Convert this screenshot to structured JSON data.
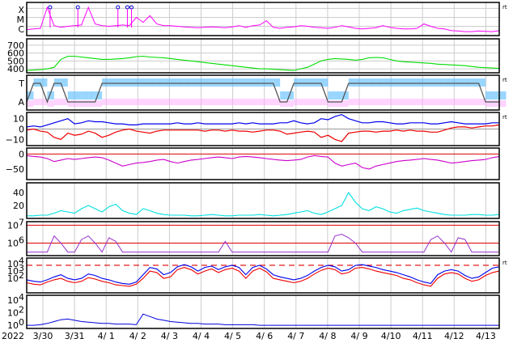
{
  "chart_data": {
    "type": "line",
    "year_label": "2022",
    "x_tick_labels": [
      "3/30",
      "3/31",
      "4/ 1",
      "4/ 2",
      "4/ 3",
      "4/ 4",
      "4/ 5",
      "4/ 6",
      "4/ 7",
      "4/ 8",
      "4/ 9",
      "4/10",
      "4/11",
      "4/12",
      "4/13"
    ],
    "right_marker": "rt",
    "panels": [
      {
        "id": "xray-class",
        "tick_labels": [
          "X",
          "M",
          "C"
        ],
        "series_color": "#ff00ff",
        "flare_markers_day": [
          0.1,
          0.98,
          2.25,
          2.55,
          2.68
        ],
        "values": [
          0.18,
          0.2,
          0.22,
          0.85,
          0.3,
          0.25,
          0.28,
          0.3,
          0.32,
          0.85,
          0.35,
          0.3,
          0.28,
          0.3,
          0.32,
          0.3,
          0.55,
          0.4,
          0.6,
          0.35,
          0.3,
          0.3,
          0.28,
          0.26,
          0.25,
          0.24,
          0.25,
          0.26,
          0.25,
          0.24,
          0.26,
          0.3,
          0.25,
          0.3,
          0.32,
          0.45,
          0.25,
          0.22,
          0.25,
          0.26,
          0.3,
          0.28,
          0.25,
          0.24,
          0.22,
          0.25,
          0.3,
          0.26,
          0.22,
          0.2,
          0.22,
          0.24,
          0.3,
          0.25,
          0.22,
          0.2,
          0.2,
          0.22,
          0.35,
          0.28,
          0.22,
          0.2,
          0.15,
          0.14,
          0.12,
          0.12,
          0.14,
          0.13,
          0.12,
          0.15
        ]
      },
      {
        "id": "solar-wind-speed",
        "tick_labels": [
          "700",
          "600",
          "500",
          "400"
        ],
        "ylim": [
          350,
          780
        ],
        "series_color": "#00dd00",
        "values": [
          380,
          385,
          390,
          400,
          420,
          520,
          560,
          560,
          550,
          540,
          530,
          520,
          520,
          525,
          530,
          540,
          555,
          560,
          550,
          545,
          540,
          530,
          520,
          510,
          500,
          490,
          480,
          470,
          460,
          450,
          440,
          430,
          420,
          410,
          400,
          400,
          395,
          390,
          385,
          380,
          400,
          420,
          460,
          500,
          520,
          530,
          525,
          520,
          510,
          520,
          540,
          545,
          540,
          520,
          500,
          490,
          485,
          480,
          475,
          470,
          460,
          455,
          450,
          445,
          440,
          430,
          420,
          415,
          410,
          405
        ]
      },
      {
        "id": "imf-sector",
        "tick_labels": [
          "T",
          "A"
        ],
        "series_color": "#55bbff",
        "secondary_color": "#ffaaff",
        "step_line_color": "#555555",
        "step_values": [
          0,
          1,
          1,
          0,
          1,
          1,
          0,
          0,
          0,
          0,
          0,
          1,
          1,
          1,
          1,
          1,
          1,
          1,
          1,
          1,
          1,
          1,
          1,
          1,
          1,
          1,
          1,
          1,
          1,
          1,
          1,
          1,
          1,
          1,
          1,
          1,
          1,
          0,
          0,
          1,
          1,
          1,
          1,
          1,
          0,
          0,
          0,
          1,
          1,
          1,
          1,
          1,
          1,
          1,
          1,
          1,
          1,
          1,
          1,
          1,
          1,
          1,
          1,
          1,
          1,
          1,
          1,
          0,
          0,
          0
        ]
      },
      {
        "id": "imf-components",
        "tick_labels": [
          "10",
          "0",
          "−10"
        ],
        "ylim": [
          -16,
          16
        ],
        "series": [
          {
            "color": "#0000ee",
            "values": [
              2,
              3,
              2,
              4,
              6,
              8,
              10,
              5,
              6,
              8,
              7,
              7,
              6,
              5,
              5,
              4,
              4,
              5,
              5,
              5,
              5,
              5,
              6,
              5,
              5,
              6,
              5,
              5,
              5,
              5,
              5,
              6,
              5,
              6,
              5,
              5,
              5,
              6,
              6,
              8,
              6,
              5,
              6,
              10,
              9,
              12,
              14,
              10,
              8,
              6,
              6,
              7,
              7,
              6,
              5,
              5,
              6,
              6,
              6,
              5,
              5,
              6,
              7,
              6,
              5,
              5,
              5,
              5,
              6,
              6
            ]
          },
          {
            "color": "#ee0000",
            "values": [
              -1,
              0,
              -2,
              -3,
              -8,
              -10,
              -4,
              -6,
              -5,
              -2,
              -4,
              -8,
              -6,
              -3,
              -1,
              0,
              -2,
              -3,
              -4,
              -2,
              -1,
              -1,
              -1,
              -1,
              -1,
              -1,
              -2,
              -1,
              -1,
              -2,
              -1,
              -2,
              -2,
              -3,
              -2,
              -1,
              -1,
              -2,
              -5,
              -4,
              -3,
              -2,
              -3,
              -8,
              -6,
              -10,
              -12,
              -4,
              -3,
              -2,
              -2,
              -3,
              -2,
              -2,
              -1,
              -2,
              -1,
              -2,
              -2,
              -3,
              -3,
              -1,
              1,
              2,
              2,
              1,
              2,
              3,
              3,
              4
            ]
          }
        ]
      },
      {
        "id": "dst",
        "tick_labels": [
          "0",
          "−50"
        ],
        "ylim": [
          -85,
          20
        ],
        "zero_line_color": "#dd0000",
        "series_color": "#cc00cc",
        "values": [
          -5,
          -8,
          -10,
          -15,
          -25,
          -20,
          -15,
          -18,
          -15,
          -12,
          -10,
          -12,
          -20,
          -30,
          -40,
          -35,
          -30,
          -28,
          -25,
          -20,
          -18,
          -25,
          -30,
          -25,
          -20,
          -18,
          -15,
          -12,
          -10,
          -12,
          -15,
          -10,
          -8,
          -10,
          -12,
          -15,
          -18,
          -20,
          -22,
          -20,
          -18,
          -10,
          -5,
          -8,
          -10,
          -30,
          -40,
          -35,
          -30,
          -45,
          -50,
          -40,
          -35,
          -30,
          -25,
          -22,
          -20,
          -18,
          -15,
          -18,
          -20,
          -25,
          -30,
          -28,
          -25,
          -22,
          -20,
          -18,
          -12,
          -8
        ]
      },
      {
        "id": "kp-density",
        "tick_labels": [
          "40",
          "20"
        ],
        "ylim": [
          0,
          55
        ],
        "series_color": "#00e0e0",
        "values": [
          4,
          4,
          5,
          5,
          8,
          12,
          10,
          8,
          15,
          20,
          15,
          10,
          18,
          22,
          12,
          8,
          6,
          15,
          12,
          8,
          6,
          5,
          5,
          5,
          4,
          4,
          5,
          6,
          5,
          4,
          4,
          5,
          5,
          5,
          6,
          5,
          4,
          5,
          6,
          8,
          10,
          12,
          8,
          6,
          10,
          15,
          20,
          40,
          25,
          15,
          12,
          18,
          15,
          10,
          8,
          12,
          14,
          16,
          12,
          10,
          8,
          6,
          5,
          5,
          5,
          6,
          6,
          5,
          5,
          6
        ]
      },
      {
        "id": "electron-flux",
        "tick_labels": [
          "10^7",
          "10^6"
        ],
        "tick_bases": [
          "10",
          "10"
        ],
        "tick_exponents": [
          "7",
          "6"
        ],
        "threshold_color": "#dd0000",
        "series_color": "#9933cc",
        "values": [
          5.5,
          5.5,
          5.5,
          5.5,
          6.4,
          6.0,
          5.5,
          5.5,
          6.2,
          6.4,
          6.0,
          5.5,
          6.3,
          6.1,
          5.5,
          5.5,
          5.5,
          5.5,
          5.5,
          5.5,
          5.5,
          5.5,
          5.5,
          5.5,
          5.5,
          5.5,
          5.5,
          5.5,
          5.5,
          6.1,
          5.5,
          5.5,
          5.5,
          5.5,
          5.5,
          5.5,
          5.5,
          5.5,
          5.5,
          5.5,
          5.5,
          5.5,
          5.5,
          5.5,
          5.5,
          6.4,
          6.5,
          6.3,
          6.0,
          5.5,
          5.5,
          5.5,
          5.5,
          5.5,
          5.5,
          5.5,
          5.5,
          5.5,
          5.5,
          6.2,
          6.4,
          6.0,
          5.5,
          6.3,
          6.2,
          5.5,
          5.5,
          5.5,
          5.5,
          5.5
        ]
      },
      {
        "id": "proton-flux",
        "tick_labels": [
          "10^4",
          "10^3",
          "10^2"
        ],
        "tick_bases": [
          "10",
          "10",
          "10"
        ],
        "tick_exponents": [
          "4",
          "3",
          "2"
        ],
        "threshold_color": "#dd0000",
        "series": [
          {
            "color": "#0000ee",
            "values": [
              1.8,
              1.6,
              1.5,
              1.8,
              2.2,
              2.5,
              2.0,
              1.8,
              2.0,
              2.6,
              2.4,
              2.0,
              1.8,
              1.5,
              1.3,
              1.2,
              1.5,
              2.5,
              3.5,
              3.3,
              2.5,
              2.8,
              3.6,
              3.9,
              3.6,
              3.0,
              3.5,
              3.7,
              3.2,
              3.6,
              3.8,
              3.5,
              2.5,
              3.5,
              3.8,
              3.3,
              2.5,
              2.2,
              2.0,
              1.8,
              2.0,
              2.4,
              3.0,
              3.5,
              3.8,
              3.6,
              3.0,
              3.2,
              3.8,
              3.9,
              3.7,
              3.5,
              3.2,
              3.0,
              2.8,
              2.5,
              2.2,
              1.8,
              1.5,
              1.3,
              2.5,
              3.0,
              3.2,
              3.0,
              2.4,
              2.0,
              2.2,
              2.8,
              3.4,
              3.6
            ]
          },
          {
            "color": "#ee0000",
            "values": [
              1.4,
              1.2,
              1.1,
              1.5,
              1.8,
              2.0,
              1.6,
              1.4,
              1.6,
              2.1,
              1.9,
              1.6,
              1.4,
              1.1,
              1.0,
              0.9,
              1.2,
              2.0,
              3.0,
              2.8,
              2.0,
              2.2,
              3.2,
              3.5,
              3.2,
              2.6,
              3.0,
              3.3,
              2.8,
              3.2,
              3.4,
              3.0,
              2.0,
              3.0,
              3.4,
              2.9,
              2.0,
              1.8,
              1.6,
              1.4,
              1.6,
              2.0,
              2.6,
              3.1,
              3.4,
              3.2,
              2.6,
              2.8,
              3.4,
              3.5,
              3.3,
              3.0,
              2.8,
              2.6,
              2.4,
              2.0,
              1.8,
              1.4,
              1.1,
              0.9,
              2.0,
              2.6,
              2.8,
              2.6,
              2.0,
              1.6,
              1.8,
              2.4,
              2.8,
              3.0
            ]
          }
        ]
      },
      {
        "id": "proton-high",
        "tick_labels": [
          "10^4",
          "10^2",
          "10^0"
        ],
        "tick_bases": [
          "10",
          "10",
          "10"
        ],
        "tick_exponents": [
          "4",
          "2",
          "0"
        ],
        "series_color": "#0000dd",
        "values": [
          0.0,
          0.0,
          0.1,
          0.3,
          0.6,
          0.9,
          1.0,
          0.8,
          0.6,
          0.5,
          0.4,
          0.3,
          0.3,
          0.2,
          0.2,
          0.2,
          0.1,
          1.8,
          1.4,
          1.0,
          0.8,
          0.6,
          0.5,
          0.4,
          0.3,
          0.3,
          0.2,
          0.2,
          0.2,
          0.1,
          0.1,
          0.1,
          0.1,
          0.1,
          0.0,
          0.0,
          0.0,
          0.0,
          0.0,
          0.0,
          0.0,
          0.0,
          0.0,
          0.0,
          0.0,
          0.0,
          0.0,
          0.0,
          0.0,
          0.0,
          0.0,
          0.0,
          0.0,
          0.0,
          0.0,
          0.0,
          0.0,
          0.0,
          0.0,
          0.0,
          0.0,
          0.0,
          0.0,
          0.0,
          0.0,
          0.0,
          0.0,
          0.0,
          0.0,
          0.0
        ]
      }
    ]
  }
}
